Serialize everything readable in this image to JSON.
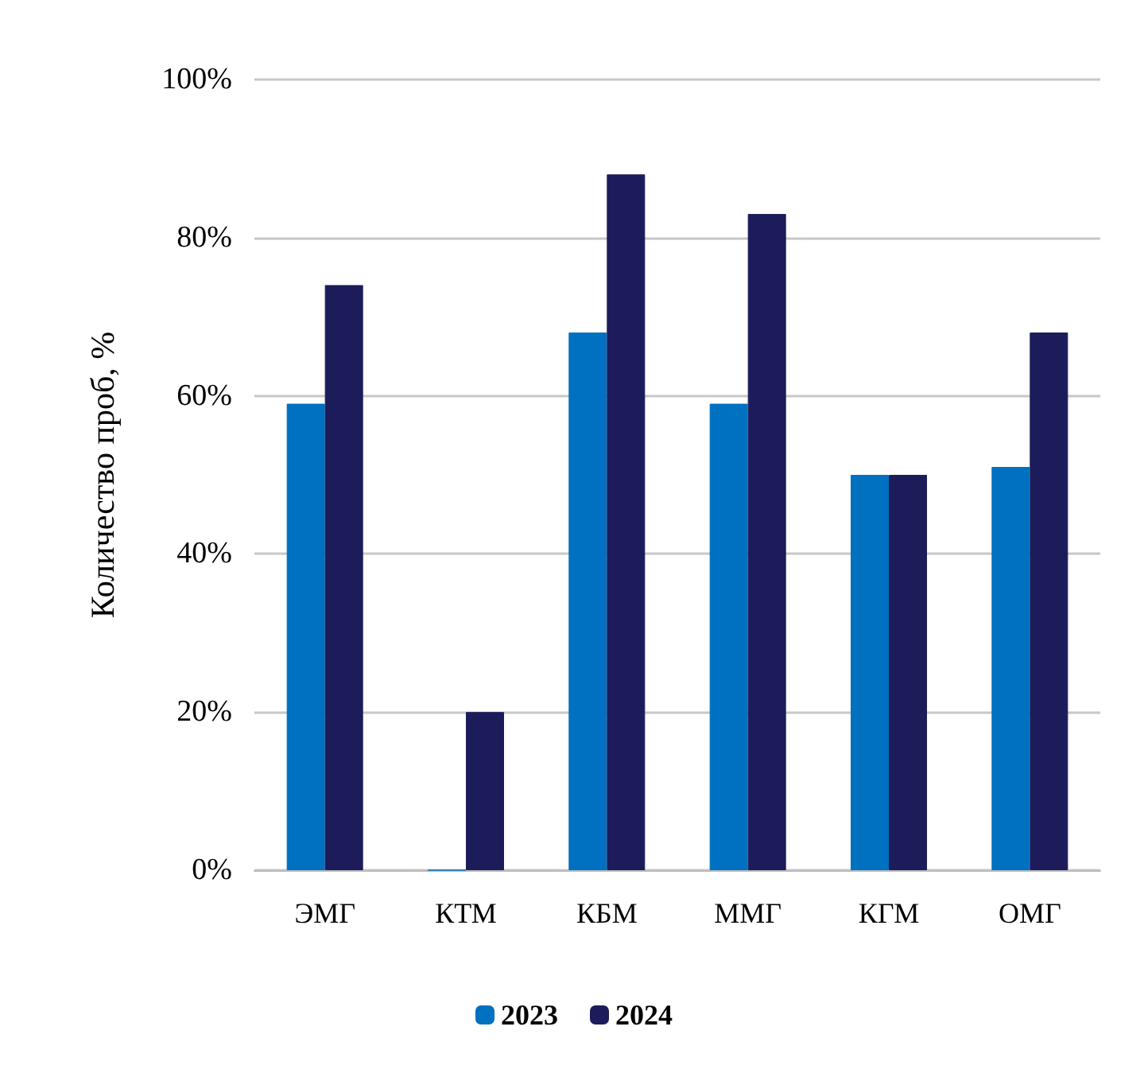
{
  "chart_data": {
    "type": "bar",
    "ylabel": "Количество проб, %",
    "categories": [
      "ЭМГ",
      "КТМ",
      "КБМ",
      "ММГ",
      "КГМ",
      "ОМГ"
    ],
    "series": [
      {
        "name": "2023",
        "color": "#0070c0",
        "values": [
          59,
          0,
          68,
          59,
          50,
          51
        ]
      },
      {
        "name": "2024",
        "color": "#1c1c5a",
        "values": [
          74,
          20,
          88,
          83,
          50,
          68
        ]
      }
    ],
    "ylim": [
      0,
      100
    ],
    "yticks": [
      {
        "value": 0,
        "label": "0%"
      },
      {
        "value": 20,
        "label": "20%"
      },
      {
        "value": 40,
        "label": "40%"
      },
      {
        "value": 60,
        "label": "60%"
      },
      {
        "value": 80,
        "label": "80%"
      },
      {
        "value": 100,
        "label": "100%"
      }
    ],
    "grid": "y",
    "legend": "bottom"
  }
}
